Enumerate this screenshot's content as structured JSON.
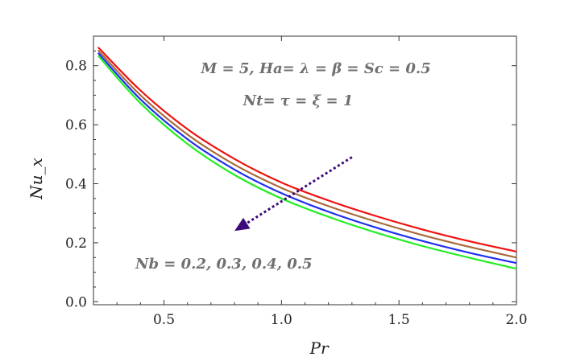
{
  "chart_data": {
    "type": "line",
    "xlabel": "Pr",
    "ylabel": "Nu_x",
    "xlim": [
      0.2,
      2.0
    ],
    "ylim": [
      -0.01,
      0.9
    ],
    "x_ticks": [
      "0.5",
      "1.0",
      "1.5",
      "2.0"
    ],
    "y_ticks": [
      "0.0",
      "0.2",
      "0.4",
      "0.6",
      "0.8"
    ],
    "grid": false,
    "annotations": {
      "params_line1": "M = 5, Ha= λ = β = Sc = 0.5",
      "params_line2": "Nt= τ = ξ = 1",
      "nb_label": "Nb = 0.2, 0.3, 0.4, 0.5"
    },
    "arrow": {
      "direction": "increasing Nb",
      "from": {
        "x": 1.3,
        "y": 0.49
      },
      "to": {
        "x": 0.8,
        "y": 0.24
      },
      "color": "#3d0a7a"
    },
    "x": [
      0.22,
      0.4,
      0.6,
      0.8,
      1.0,
      1.2,
      1.4,
      1.6,
      1.8,
      2.0
    ],
    "series": [
      {
        "color": "#ee1111",
        "values": [
          0.862,
          0.716,
          0.585,
          0.484,
          0.404,
          0.343,
          0.291,
          0.245,
          0.205,
          0.17
        ]
      },
      {
        "color": "#a86a3c",
        "values": [
          0.852,
          0.7,
          0.567,
          0.465,
          0.386,
          0.324,
          0.272,
          0.226,
          0.186,
          0.15
        ]
      },
      {
        "color": "#1f2fee",
        "values": [
          0.843,
          0.686,
          0.551,
          0.448,
          0.368,
          0.305,
          0.252,
          0.206,
          0.166,
          0.131
        ]
      },
      {
        "color": "#22ee22",
        "values": [
          0.834,
          0.673,
          0.535,
          0.43,
          0.35,
          0.288,
          0.235,
          0.189,
          0.149,
          0.112
        ]
      }
    ]
  }
}
